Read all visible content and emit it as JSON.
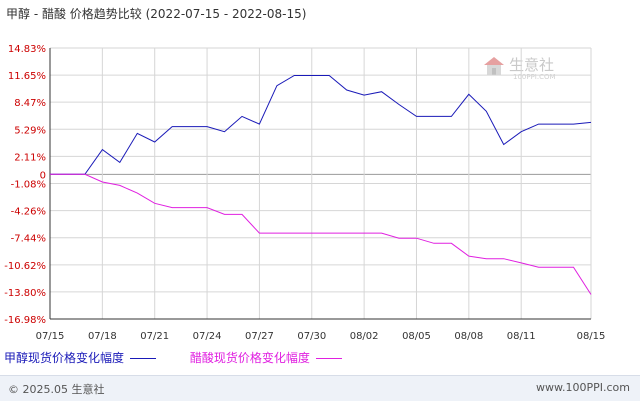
{
  "title": "甲醇 - 醋酸 价格趋势比较",
  "date_range": "(2022-07-15 - 2022-08-15)",
  "watermark": {
    "name": "生意社",
    "url": "100PPI.COM"
  },
  "footer": {
    "copyright": "© 2025.05 生意社",
    "site": "www.100PPI.com"
  },
  "colors": {
    "series1": "#1a1ab8",
    "series2": "#e020e0",
    "grid": "#d6d6d6",
    "axis": "#333333"
  },
  "chart_data": {
    "type": "line",
    "y_ticks": [
      "14.83%",
      "11.65%",
      "8.47%",
      "5.29%",
      "2.11%",
      "0",
      "-1.08%",
      "-4.26%",
      "-7.44%",
      "-10.62%",
      "-13.80%",
      "-16.98%"
    ],
    "y_tick_values": [
      14.83,
      11.65,
      8.47,
      5.29,
      2.11,
      0,
      -1.08,
      -4.26,
      -7.44,
      -10.62,
      -13.8,
      -16.98
    ],
    "ylim": [
      -16.98,
      14.83
    ],
    "x_ticks": [
      "07/15",
      "07/18",
      "07/21",
      "07/24",
      "07/27",
      "07/30",
      "08/02",
      "08/05",
      "08/08",
      "08/11",
      "08/15"
    ],
    "grid": true,
    "legend_position": "bottom",
    "series": [
      {
        "name": "甲醇现货价格变化幅度",
        "color": "#1a1ab8",
        "points": [
          [
            0,
            0
          ],
          [
            1,
            0
          ],
          [
            2,
            0
          ],
          [
            3,
            2.9
          ],
          [
            4,
            1.4
          ],
          [
            5,
            4.8
          ],
          [
            6,
            3.8
          ],
          [
            7,
            5.6
          ],
          [
            8,
            5.6
          ],
          [
            9,
            5.6
          ],
          [
            10,
            5.0
          ],
          [
            11,
            6.8
          ],
          [
            12,
            5.9
          ],
          [
            13,
            10.4
          ],
          [
            14,
            11.6
          ],
          [
            15,
            11.6
          ],
          [
            16,
            11.6
          ],
          [
            17,
            9.9
          ],
          [
            18,
            9.3
          ],
          [
            19,
            9.7
          ],
          [
            20,
            8.2
          ],
          [
            21,
            6.8
          ],
          [
            22,
            6.8
          ],
          [
            23,
            6.8
          ],
          [
            24,
            9.4
          ],
          [
            25,
            7.4
          ],
          [
            26,
            3.5
          ],
          [
            27,
            5.0
          ],
          [
            28,
            5.9
          ],
          [
            29,
            5.9
          ],
          [
            30,
            5.9
          ],
          [
            31,
            6.1
          ]
        ]
      },
      {
        "name": "醋酸现货价格变化幅度",
        "color": "#e020e0",
        "points": [
          [
            0,
            0
          ],
          [
            1,
            0
          ],
          [
            2,
            0
          ],
          [
            3,
            -0.9
          ],
          [
            4,
            -1.3
          ],
          [
            5,
            -2.2
          ],
          [
            6,
            -3.4
          ],
          [
            7,
            -3.9
          ],
          [
            8,
            -3.9
          ],
          [
            9,
            -3.9
          ],
          [
            10,
            -4.7
          ],
          [
            11,
            -4.7
          ],
          [
            12,
            -6.9
          ],
          [
            13,
            -6.9
          ],
          [
            14,
            -6.9
          ],
          [
            15,
            -6.9
          ],
          [
            16,
            -6.9
          ],
          [
            17,
            -6.9
          ],
          [
            18,
            -6.9
          ],
          [
            19,
            -6.9
          ],
          [
            20,
            -7.5
          ],
          [
            21,
            -7.5
          ],
          [
            22,
            -8.1
          ],
          [
            23,
            -8.1
          ],
          [
            24,
            -9.6
          ],
          [
            25,
            -9.9
          ],
          [
            26,
            -9.9
          ],
          [
            27,
            -10.4
          ],
          [
            28,
            -10.9
          ],
          [
            29,
            -10.9
          ],
          [
            30,
            -10.9
          ],
          [
            31,
            -14.1
          ]
        ]
      }
    ]
  }
}
